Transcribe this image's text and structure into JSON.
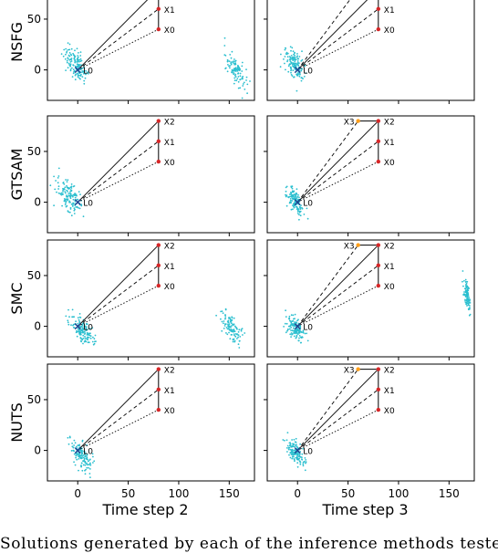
{
  "chart_data": {
    "type": "scatter",
    "rows": [
      "NSFG",
      "GTSAM",
      "SMC",
      "NUTS"
    ],
    "columns": [
      "Time step 2",
      "Time step 3"
    ],
    "xlim": [
      -30,
      175
    ],
    "ylim": [
      -30,
      85
    ],
    "xticks": [
      0,
      50,
      100,
      150
    ],
    "yticks": [
      0,
      50
    ],
    "landmark": {
      "name": "L0",
      "x": 0,
      "y": 0
    },
    "poses": [
      {
        "name": "X0",
        "x": 80,
        "y": 40
      },
      {
        "name": "X1",
        "x": 80,
        "y": 60
      },
      {
        "name": "X2",
        "x": 80,
        "y": 80
      },
      {
        "name": "X3",
        "x": 60,
        "y": 80
      }
    ],
    "sample_color": "#2bbfcf",
    "pose_color": "#d62728",
    "x3_color": "#ff9f1a",
    "panels": [
      {
        "row": "NSFG",
        "col": "Time step 2",
        "poses": [
          "X0",
          "X1",
          "X2"
        ],
        "landmark_cluster": {
          "cx": -2,
          "cy": 5,
          "sx": 8,
          "sy": 10
        },
        "ghost_cluster": {
          "cx": 157,
          "cy": 0,
          "sx": 7,
          "sy": 10
        }
      },
      {
        "row": "NSFG",
        "col": "Time step 3",
        "poses": [
          "X0",
          "X1",
          "X2",
          "X3"
        ],
        "landmark_cluster": {
          "cx": -3,
          "cy": 5,
          "sx": 7,
          "sy": 10
        }
      },
      {
        "row": "GTSAM",
        "col": "Time step 2",
        "poses": [
          "X0",
          "X1",
          "X2"
        ],
        "landmark_cluster": {
          "cx": -8,
          "cy": 5,
          "sx": 8,
          "sy": 11
        }
      },
      {
        "row": "GTSAM",
        "col": "Time step 3",
        "poses": [
          "X0",
          "X1",
          "X2",
          "X3"
        ],
        "landmark_cluster": {
          "cx": -3,
          "cy": 2,
          "sx": 6,
          "sy": 8
        }
      },
      {
        "row": "SMC",
        "col": "Time step 2",
        "poses": [
          "X0",
          "X1",
          "X2"
        ],
        "landmark_cluster": {
          "cx": 4,
          "cy": -3,
          "sx": 8,
          "sy": 8
        },
        "ghost_cluster": {
          "cx": 152,
          "cy": -2,
          "sx": 8,
          "sy": 9
        }
      },
      {
        "row": "SMC",
        "col": "Time step 3",
        "poses": [
          "X0",
          "X1",
          "X2",
          "X3"
        ],
        "landmark_cluster": {
          "cx": -2,
          "cy": -2,
          "sx": 6,
          "sy": 7
        },
        "ghost_cluster": {
          "cx": 168,
          "cy": 30,
          "sx": 2,
          "sy": 8
        }
      },
      {
        "row": "NUTS",
        "col": "Time step 2",
        "poses": [
          "X0",
          "X1",
          "X2"
        ],
        "landmark_cluster": {
          "cx": 3,
          "cy": -5,
          "sx": 7,
          "sy": 9
        }
      },
      {
        "row": "NUTS",
        "col": "Time step 3",
        "poses": [
          "X0",
          "X1",
          "X2",
          "X3"
        ],
        "landmark_cluster": {
          "cx": -2,
          "cy": -2,
          "sx": 6,
          "sy": 7
        }
      }
    ]
  },
  "caption": "Solutions generated by each of the inference methods teste"
}
